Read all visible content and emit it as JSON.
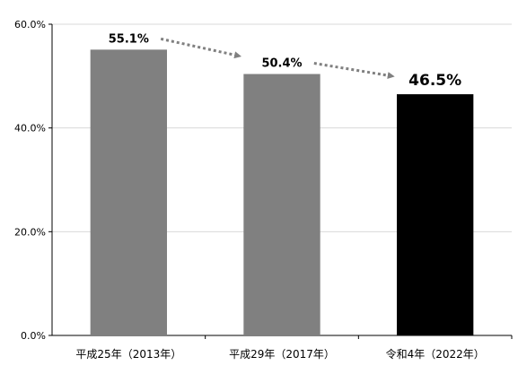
{
  "chart_data": {
    "type": "bar",
    "categories": [
      "平成25年（2013年）",
      "平成29年（2017年）",
      "令和4年（2022年）"
    ],
    "values": [
      55.1,
      50.4,
      46.5
    ],
    "data_labels": [
      "55.1%",
      "50.4%",
      "46.5%"
    ],
    "ylim": [
      0,
      60
    ],
    "yticks": [
      0,
      20,
      40,
      60
    ],
    "ytick_labels": [
      "0.0%",
      "20.0%",
      "40.0%",
      "60.0%"
    ],
    "grid": true,
    "title": "",
    "xlabel": "",
    "ylabel": "",
    "colors": {
      "bar_default": "#808080",
      "bar_highlight": "#000000",
      "trend_arrow": "#808080",
      "gridline": "#d9d9d9",
      "axis": "#000000"
    },
    "highlight_index": 2,
    "trend_arrows": [
      {
        "from": 0,
        "to": 1,
        "style": "dotted"
      },
      {
        "from": 1,
        "to": 2,
        "style": "dotted"
      }
    ]
  }
}
